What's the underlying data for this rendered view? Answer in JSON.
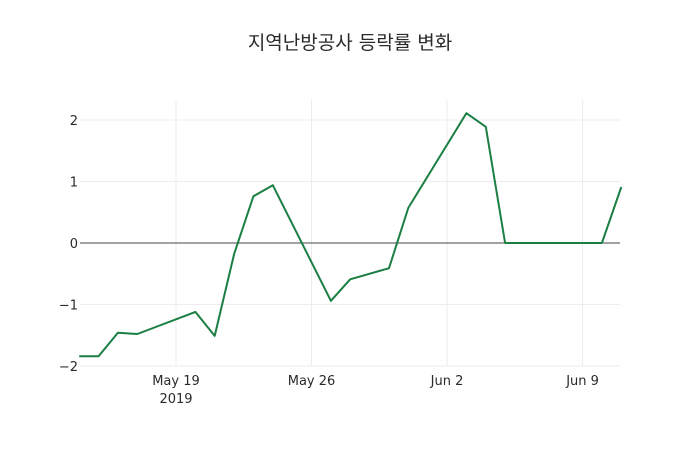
{
  "chart_data": {
    "type": "line",
    "title": "지역난방공사 등락률 변화",
    "xlabel": "",
    "ylabel": "",
    "x": [
      "2019-05-14",
      "2019-05-15",
      "2019-05-16",
      "2019-05-17",
      "2019-05-20",
      "2019-05-21",
      "2019-05-22",
      "2019-05-23",
      "2019-05-24",
      "2019-05-27",
      "2019-05-28",
      "2019-05-30",
      "2019-05-31",
      "2019-06-03",
      "2019-06-04",
      "2019-06-05",
      "2019-06-10",
      "2019-06-11"
    ],
    "series": [
      {
        "name": "등락률",
        "color": "#1b7f43",
        "values": [
          -1.84,
          -1.84,
          -1.46,
          -1.48,
          -1.12,
          -1.51,
          -0.18,
          0.76,
          0.94,
          -0.94,
          -0.59,
          -0.41,
          0.57,
          2.11,
          1.89,
          0,
          0,
          0.91
        ]
      }
    ],
    "ylim": [
      -2,
      2.35
    ],
    "yticks": [
      "2",
      "1",
      "0",
      "−1",
      "−2"
    ],
    "xticks": [
      {
        "date": "2019-05-19",
        "label": "May 19",
        "sublabel": "2019"
      },
      {
        "date": "2019-05-26",
        "label": "May 26",
        "sublabel": ""
      },
      {
        "date": "2019-06-02",
        "label": "Jun 2",
        "sublabel": ""
      },
      {
        "date": "2019-06-09",
        "label": "Jun 9",
        "sublabel": ""
      }
    ],
    "grid": true,
    "zeroline": true
  }
}
